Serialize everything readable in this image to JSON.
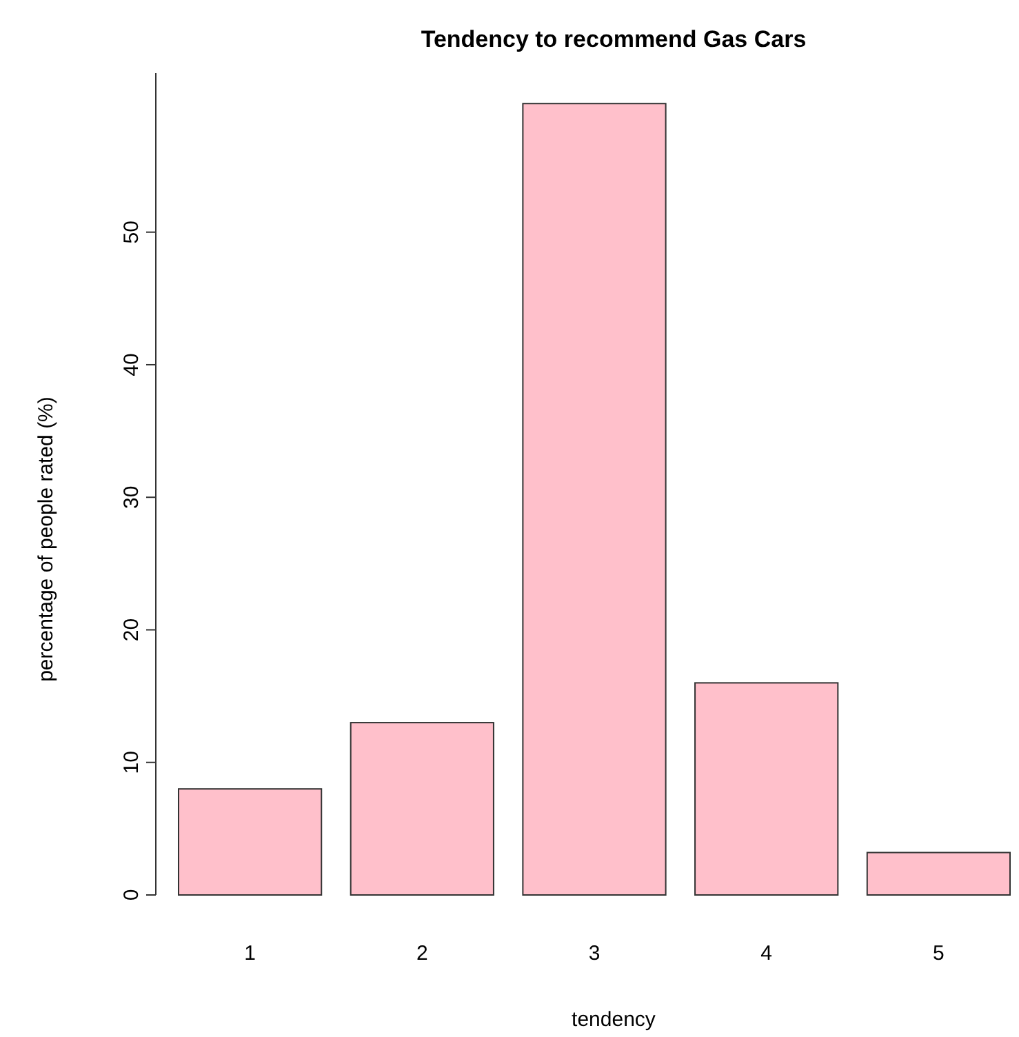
{
  "chart_data": {
    "type": "bar",
    "title": "Tendency to recommend Gas Cars",
    "xlabel": "tendency",
    "ylabel": "percentage of people rated (%)",
    "categories": [
      "1",
      "2",
      "3",
      "4",
      "5"
    ],
    "values": [
      8,
      13,
      59.7,
      16,
      3.2
    ],
    "color": "#ffc0cb",
    "ylim": [
      0,
      62
    ],
    "yticks": [
      0,
      10,
      20,
      30,
      40,
      50
    ],
    "grid": false
  }
}
